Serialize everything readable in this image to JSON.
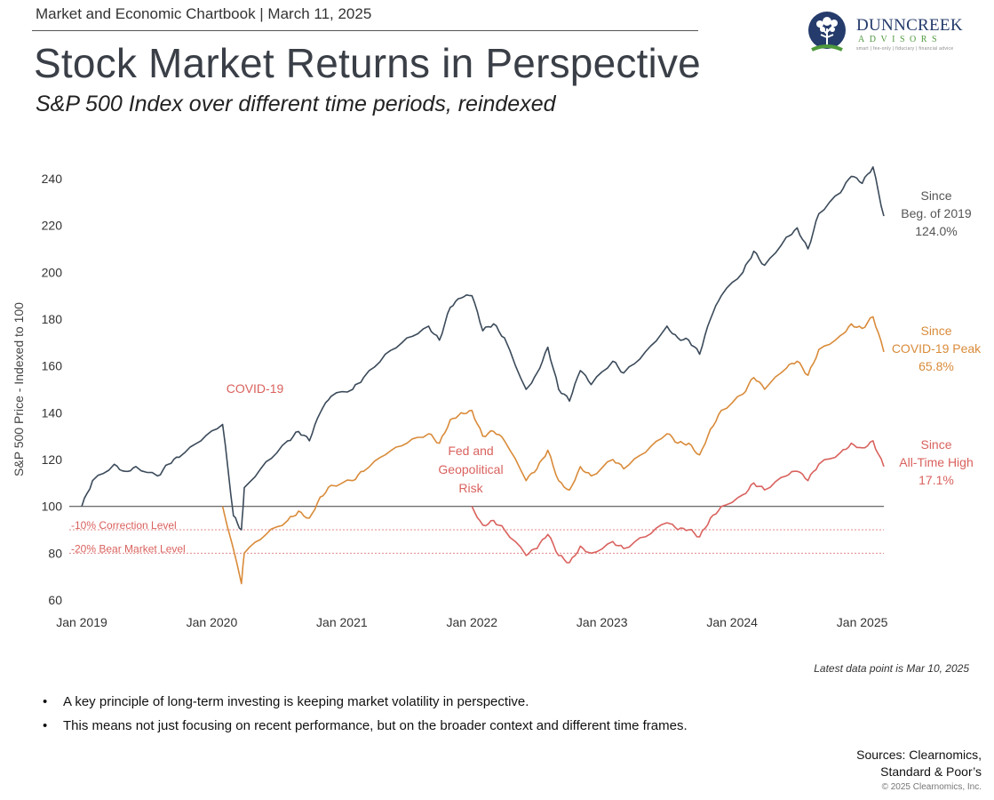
{
  "header": {
    "topline": "Market and Economic Chartbook | March 11, 2025",
    "title": "Stock Market Returns in Perspective",
    "subtitle": "S&P 500 Index over different time periods, reindexed"
  },
  "logo": {
    "name": "DUNNCREEK",
    "sub": "ADVISORS",
    "tagline": "smart | fee-only | fiduciary | financial advice",
    "colors": {
      "navy": "#243b6b",
      "green": "#4f9a3d"
    }
  },
  "chart_data": {
    "type": "line",
    "title": "Stock Market Returns in Perspective",
    "ylabel": "S&P 500 Price - Indexed to 100",
    "xlabel": "",
    "ylim": [
      60,
      245
    ],
    "yticks": [
      60,
      80,
      100,
      120,
      140,
      160,
      180,
      200,
      220,
      240
    ],
    "xticks": [
      "Jan 2019",
      "Jan 2020",
      "Jan 2021",
      "Jan 2022",
      "Jan 2023",
      "Jan 2024",
      "Jan 2025"
    ],
    "x_range": [
      "2019-01",
      "2025-03"
    ],
    "grid": false,
    "reference_lines": [
      {
        "y": 100,
        "label": "",
        "color": "#555555",
        "style": "solid"
      },
      {
        "y": 90,
        "label": "-10% Correction Level",
        "color": "#e08a8a",
        "style": "dotted"
      },
      {
        "y": 80,
        "label": "-20% Bear Market Level",
        "color": "#e08a8a",
        "style": "dotted"
      }
    ],
    "annotations": [
      {
        "text": [
          "COVID-19"
        ],
        "color": "#d9625e"
      },
      {
        "text": [
          "Fed and",
          "Geopolitical",
          "Risk"
        ],
        "color": "#d9625e"
      }
    ],
    "series": [
      {
        "name": "Since Beg. of 2019",
        "label_lines": [
          "Since",
          "Beg. of 2019",
          "124.0%"
        ],
        "color": "#3b4a5a",
        "points": [
          [
            "2019-01",
            100
          ],
          [
            "2019-02",
            111
          ],
          [
            "2019-04",
            118
          ],
          [
            "2019-05",
            115
          ],
          [
            "2019-06",
            117
          ],
          [
            "2019-08",
            113
          ],
          [
            "2019-09",
            118
          ],
          [
            "2019-10",
            121
          ],
          [
            "2019-12",
            128
          ],
          [
            "2020-02",
            135
          ],
          [
            "2020-03",
            96
          ],
          [
            "2020-03-23",
            90
          ],
          [
            "2020-04",
            108
          ],
          [
            "2020-06",
            119
          ],
          [
            "2020-08",
            128
          ],
          [
            "2020-09",
            132
          ],
          [
            "2020-10",
            128
          ],
          [
            "2020-11",
            140
          ],
          [
            "2020-12",
            147
          ],
          [
            "2021-02",
            150
          ],
          [
            "2021-03",
            155
          ],
          [
            "2021-05",
            165
          ],
          [
            "2021-07",
            172
          ],
          [
            "2021-09",
            177
          ],
          [
            "2021-10",
            171
          ],
          [
            "2021-11",
            185
          ],
          [
            "2021-12",
            189
          ],
          [
            "2022-01",
            190
          ],
          [
            "2022-02",
            175
          ],
          [
            "2022-03",
            178
          ],
          [
            "2022-04",
            172
          ],
          [
            "2022-06",
            150
          ],
          [
            "2022-07",
            157
          ],
          [
            "2022-08",
            168
          ],
          [
            "2022-09",
            150
          ],
          [
            "2022-10",
            145
          ],
          [
            "2022-11",
            158
          ],
          [
            "2022-12",
            152
          ],
          [
            "2023-02",
            162
          ],
          [
            "2023-03",
            157
          ],
          [
            "2023-05",
            166
          ],
          [
            "2023-07",
            177
          ],
          [
            "2023-08",
            172
          ],
          [
            "2023-09",
            171
          ],
          [
            "2023-10",
            165
          ],
          [
            "2023-11",
            180
          ],
          [
            "2023-12",
            190
          ],
          [
            "2024-02",
            200
          ],
          [
            "2024-03",
            209
          ],
          [
            "2024-04",
            203
          ],
          [
            "2024-06",
            215
          ],
          [
            "2024-07",
            219
          ],
          [
            "2024-08",
            210
          ],
          [
            "2024-09",
            225
          ],
          [
            "2024-11",
            234
          ],
          [
            "2024-12",
            241
          ],
          [
            "2025-01",
            238
          ],
          [
            "2025-02",
            245
          ],
          [
            "2025-03",
            224
          ]
        ]
      },
      {
        "name": "Since COVID-19 Peak",
        "label_lines": [
          "Since",
          "COVID-19 Peak",
          "65.8%"
        ],
        "color": "#d98b3a",
        "points": [
          [
            "2020-02",
            100
          ],
          [
            "2020-03-23",
            67
          ],
          [
            "2020-04",
            80
          ],
          [
            "2020-06",
            88
          ],
          [
            "2020-08",
            94
          ],
          [
            "2020-09",
            98
          ],
          [
            "2020-10",
            95
          ],
          [
            "2020-11",
            104
          ],
          [
            "2020-12",
            109
          ],
          [
            "2021-02",
            111
          ],
          [
            "2021-03",
            115
          ],
          [
            "2021-05",
            122
          ],
          [
            "2021-07",
            127
          ],
          [
            "2021-09",
            131
          ],
          [
            "2021-10",
            127
          ],
          [
            "2021-11",
            137
          ],
          [
            "2021-12",
            140
          ],
          [
            "2022-01",
            141
          ],
          [
            "2022-02",
            130
          ],
          [
            "2022-03",
            132
          ],
          [
            "2022-04",
            128
          ],
          [
            "2022-06",
            111
          ],
          [
            "2022-07",
            116
          ],
          [
            "2022-08",
            124
          ],
          [
            "2022-09",
            111
          ],
          [
            "2022-10",
            107
          ],
          [
            "2022-11",
            117
          ],
          [
            "2022-12",
            113
          ],
          [
            "2023-02",
            120
          ],
          [
            "2023-03",
            116
          ],
          [
            "2023-05",
            123
          ],
          [
            "2023-07",
            131
          ],
          [
            "2023-08",
            127
          ],
          [
            "2023-09",
            127
          ],
          [
            "2023-10",
            122
          ],
          [
            "2023-11",
            133
          ],
          [
            "2023-12",
            141
          ],
          [
            "2024-02",
            148
          ],
          [
            "2024-03",
            155
          ],
          [
            "2024-04",
            150
          ],
          [
            "2024-06",
            159
          ],
          [
            "2024-07",
            162
          ],
          [
            "2024-08",
            156
          ],
          [
            "2024-09",
            167
          ],
          [
            "2024-11",
            173
          ],
          [
            "2024-12",
            178
          ],
          [
            "2025-01",
            176
          ],
          [
            "2025-02",
            181
          ],
          [
            "2025-03",
            166
          ]
        ]
      },
      {
        "name": "Since All-Time High",
        "label_lines": [
          "Since",
          "All-Time High",
          "17.1%"
        ],
        "color": "#d9625e",
        "points": [
          [
            "2022-01",
            100
          ],
          [
            "2022-02",
            92
          ],
          [
            "2022-03",
            94
          ],
          [
            "2022-04",
            90
          ],
          [
            "2022-06",
            79
          ],
          [
            "2022-07",
            82
          ],
          [
            "2022-08",
            88
          ],
          [
            "2022-09",
            79
          ],
          [
            "2022-10",
            76
          ],
          [
            "2022-11",
            83
          ],
          [
            "2022-12",
            80
          ],
          [
            "2023-02",
            85
          ],
          [
            "2023-03",
            82
          ],
          [
            "2023-05",
            87
          ],
          [
            "2023-07",
            93
          ],
          [
            "2023-08",
            90
          ],
          [
            "2023-09",
            90
          ],
          [
            "2023-10",
            87
          ],
          [
            "2023-11",
            95
          ],
          [
            "2023-12",
            100
          ],
          [
            "2024-02",
            105
          ],
          [
            "2024-03",
            110
          ],
          [
            "2024-04",
            107
          ],
          [
            "2024-06",
            113
          ],
          [
            "2024-07",
            115
          ],
          [
            "2024-08",
            111
          ],
          [
            "2024-09",
            118
          ],
          [
            "2024-11",
            123
          ],
          [
            "2024-12",
            127
          ],
          [
            "2025-01",
            125
          ],
          [
            "2025-02",
            128
          ],
          [
            "2025-03",
            117
          ]
        ]
      }
    ]
  },
  "notes": {
    "latest": "Latest data point is Mar 10, 2025",
    "bullets": [
      "A key principle of long-term investing is keeping market volatility in perspective.",
      "This means not just focusing on recent performance, but on the broader context and different time frames."
    ],
    "sources_line1": "Sources: Clearnomics,",
    "sources_line2": "Standard & Poor’s",
    "copyright": "© 2025 Clearnomics, Inc."
  }
}
